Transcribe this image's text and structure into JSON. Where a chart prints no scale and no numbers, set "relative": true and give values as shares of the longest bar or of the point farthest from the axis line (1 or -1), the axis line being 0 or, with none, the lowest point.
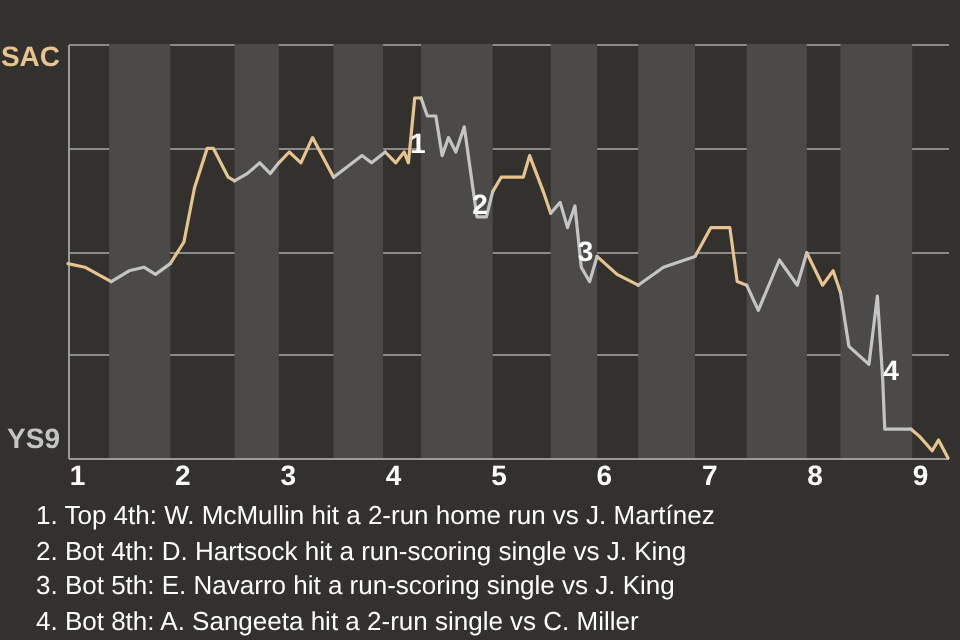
{
  "chart_data": {
    "type": "line",
    "relative": true,
    "x": [
      0.92,
      1.08,
      1.33,
      1.5,
      1.64,
      1.75,
      1.89,
      2.02,
      2.12,
      2.24,
      2.3,
      2.44,
      2.5,
      2.62,
      2.74,
      2.84,
      2.92,
      3.02,
      3.13,
      3.24,
      3.44,
      3.71,
      3.8,
      3.93,
      4.03,
      4.11,
      4.15,
      4.21,
      4.27,
      4.33,
      4.41,
      4.47,
      4.53,
      4.6,
      4.68,
      4.8,
      4.89,
      4.95,
      5.03,
      5.24,
      5.3,
      5.43,
      5.5,
      5.59,
      5.66,
      5.73,
      5.79,
      5.87,
      5.94,
      6.13,
      6.33,
      6.57,
      6.87,
      7.02,
      7.2,
      7.27,
      7.36,
      7.47,
      7.67,
      7.84,
      7.93,
      8.08,
      8.18,
      8.25,
      8.33,
      8.52,
      8.6,
      8.65,
      8.67,
      8.92,
      9,
      9.12,
      9.18,
      9.27
    ],
    "series": [
      {
        "color": "#e6c38f",
        "values": [
          0.54,
          0.53,
          0.49,
          null,
          null,
          null,
          0.54,
          0.6,
          0.75,
          0.86,
          0.86,
          0.78,
          0.77,
          null,
          null,
          null,
          0.82,
          0.85,
          0.82,
          0.89,
          0.78,
          null,
          null,
          0.85,
          0.82,
          0.85,
          0.82,
          1,
          1,
          null,
          null,
          null,
          null,
          null,
          null,
          null,
          null,
          0.74,
          0.78,
          0.78,
          0.84,
          0.74,
          0.68,
          null,
          null,
          null,
          null,
          null,
          0.56,
          0.51,
          0.48,
          null,
          0.56,
          0.64,
          0.64,
          0.49,
          0.48,
          null,
          null,
          null,
          0.57,
          0.48,
          0.52,
          0.46,
          null,
          null,
          null,
          null,
          null,
          0.08,
          0.06,
          0.02,
          0.05,
          0
        ]
      },
      {
        "color": "#c4c4c4",
        "values": [
          null,
          null,
          0.49,
          0.52,
          0.53,
          0.51,
          0.54,
          null,
          null,
          null,
          null,
          null,
          0.77,
          0.79,
          0.82,
          0.79,
          0.82,
          null,
          null,
          null,
          0.78,
          0.84,
          0.82,
          0.85,
          null,
          null,
          null,
          null,
          1,
          0.95,
          0.95,
          0.84,
          0.89,
          0.85,
          0.92,
          0.67,
          0.67,
          0.74,
          null,
          null,
          null,
          null,
          0.68,
          0.71,
          0.64,
          0.7,
          0.53,
          0.49,
          0.56,
          null,
          0.48,
          0.53,
          0.56,
          null,
          null,
          null,
          0.48,
          0.41,
          0.55,
          0.48,
          0.57,
          null,
          null,
          0.46,
          0.31,
          0.26,
          0.45,
          0.22,
          0.08,
          0.08,
          null,
          null,
          null,
          null
        ]
      }
    ],
    "xlim": [
      0.92,
      9.27
    ],
    "xticks": [
      1,
      2,
      3,
      4,
      5,
      6,
      7,
      8,
      9
    ],
    "grid": "y",
    "bands": [
      {
        "axis": "x",
        "from": 1.31,
        "to": 1.89,
        "color": "#4b4a48"
      },
      {
        "axis": "x",
        "from": 2.5,
        "to": 2.92,
        "color": "#4b4a48"
      },
      {
        "axis": "x",
        "from": 3.44,
        "to": 3.91,
        "color": "#4b4a48"
      },
      {
        "axis": "x",
        "from": 4.27,
        "to": 4.95,
        "color": "#4b4a48"
      },
      {
        "axis": "x",
        "from": 5.5,
        "to": 5.94,
        "color": "#4b4a48"
      },
      {
        "axis": "x",
        "from": 6.33,
        "to": 6.87,
        "color": "#4b4a48"
      },
      {
        "axis": "x",
        "from": 7.36,
        "to": 7.93,
        "color": "#4b4a48"
      },
      {
        "axis": "x",
        "from": 8.25,
        "to": 8.93,
        "color": "#4b4a48"
      }
    ],
    "annotations": [
      "SAC",
      "YS9",
      {
        "text": "1",
        "x": 4.24,
        "y": 0.87
      },
      {
        "text": "2",
        "x": 4.83,
        "y": 0.7
      },
      {
        "text": "3",
        "x": 5.83,
        "y": 0.57
      },
      {
        "text": "4",
        "x": 8.73,
        "y": 0.24
      },
      "1. Top 4th: W. McMullin hit a 2-run home run vs J. Martínez",
      "2. Bot 4th: D. Hartsock hit a run-scoring single vs J. King",
      "3. Bot 5th: E. Navarro hit a run-scoring single vs J. King",
      "4. Bot 8th: A. Sangeeta hit a 2-run single vs C. Miller"
    ]
  }
}
